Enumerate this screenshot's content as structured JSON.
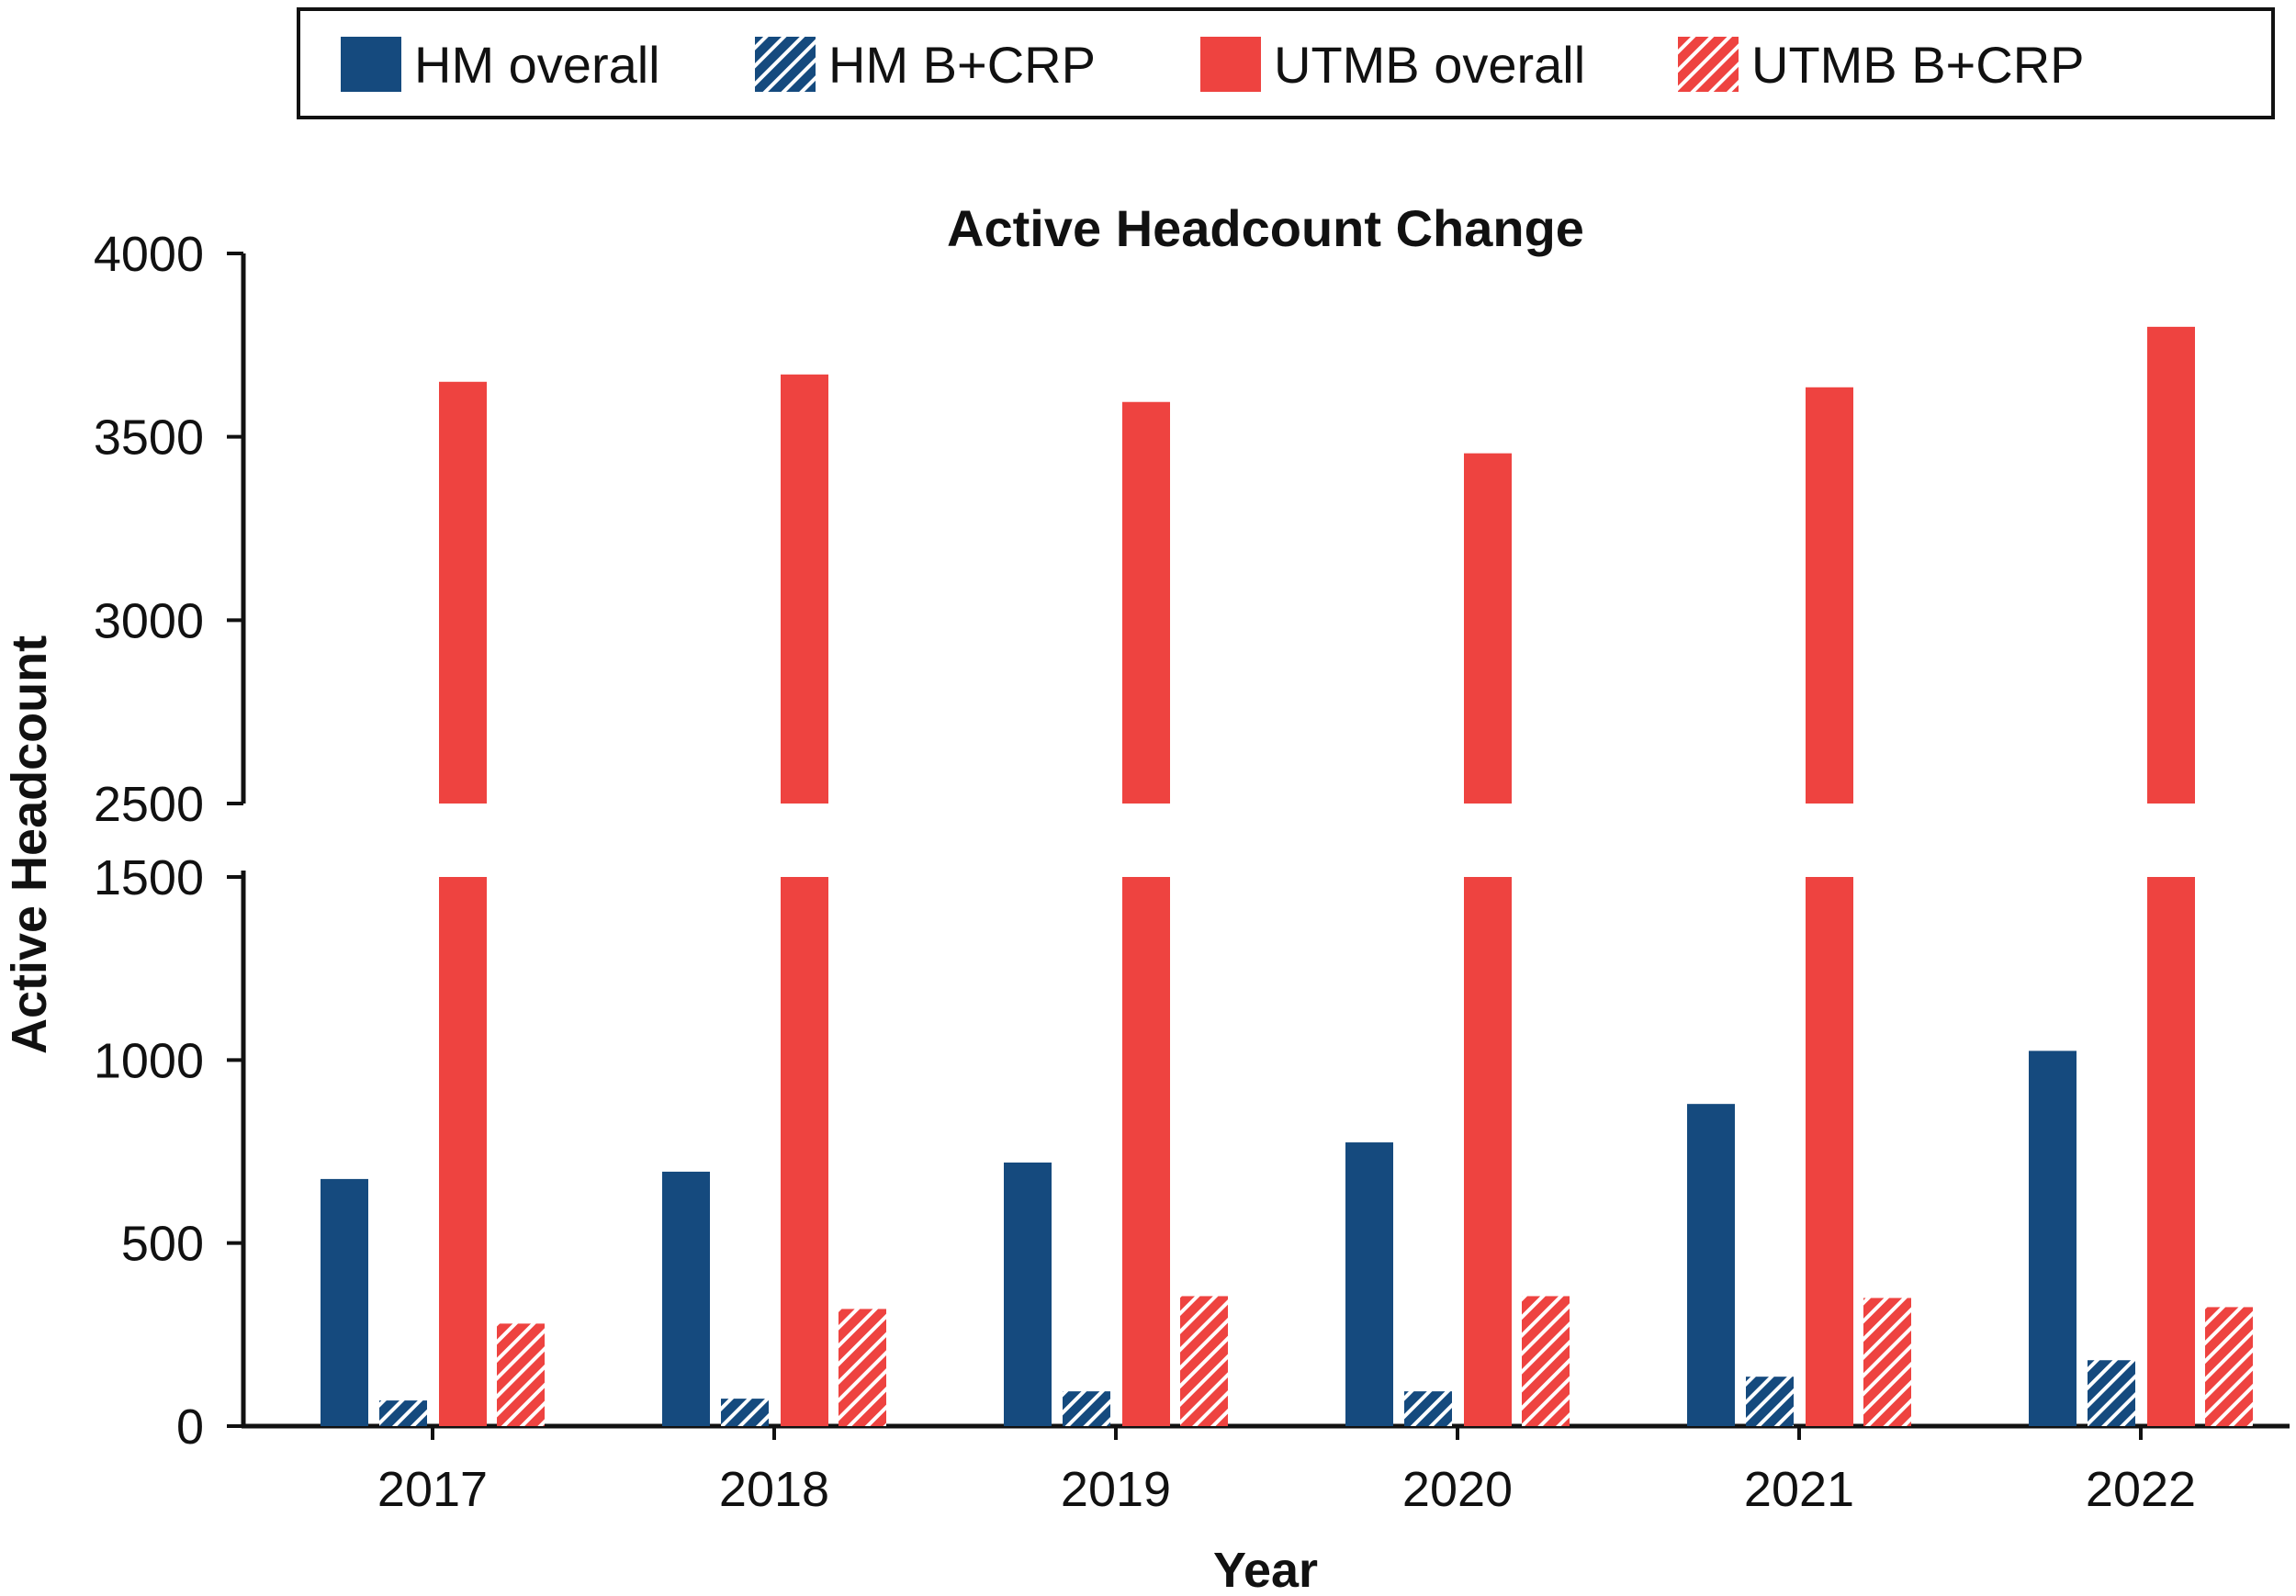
{
  "chart_data": {
    "type": "bar",
    "title": "Active Headcount Change",
    "xlabel": "Year",
    "ylabel": "Active Headcount",
    "categories": [
      "2017",
      "2018",
      "2019",
      "2020",
      "2021",
      "2022"
    ],
    "series": [
      {
        "name": "HM overall",
        "values": [
          675,
          695,
          720,
          775,
          880,
          1025
        ],
        "color": "#154a7e",
        "pattern": "solid"
      },
      {
        "name": "HM B+CRP",
        "values": [
          70,
          75,
          95,
          95,
          135,
          180
        ],
        "color": "#154a7e",
        "pattern": "hatched"
      },
      {
        "name": "UTMB overall",
        "values": [
          3650,
          3670,
          3595,
          3455,
          3635,
          3800
        ],
        "color": "#ee4340",
        "pattern": "solid"
      },
      {
        "name": "UTMB B+CRP",
        "values": [
          280,
          320,
          355,
          355,
          350,
          325
        ],
        "color": "#ee4340",
        "pattern": "hatched"
      }
    ],
    "y_axis_break": {
      "lower_range": [
        0,
        1500
      ],
      "upper_range": [
        2500,
        4000
      ]
    },
    "lower_ticks": [
      0,
      500,
      1000,
      1500
    ],
    "upper_ticks": [
      2500,
      3000,
      3500,
      4000
    ],
    "legend_position": "top",
    "grid": false
  }
}
